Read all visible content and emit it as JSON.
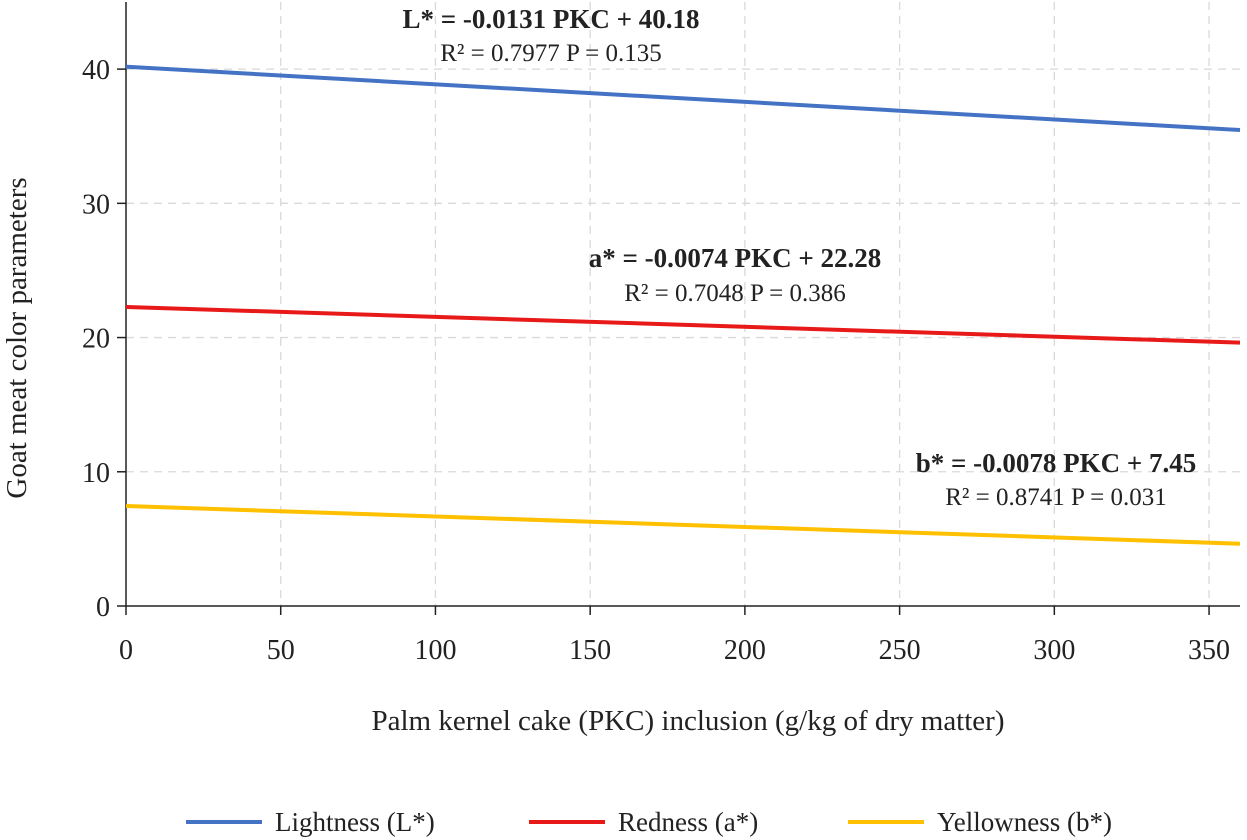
{
  "chart_data": {
    "type": "line",
    "title": "",
    "xlabel": "Palm kernel cake (PKC) inclusion (g/kg of dry matter)",
    "ylabel": "Goat meat color parameters",
    "xlim": [
      0,
      360
    ],
    "ylim": [
      0,
      45
    ],
    "xticks": [
      0,
      50,
      100,
      150,
      200,
      250,
      300,
      350
    ],
    "yticks": [
      0,
      10,
      20,
      30,
      40
    ],
    "grid": true,
    "legend_position": "bottom",
    "series": [
      {
        "name": "Lightness (L*)",
        "color": "#4472c4",
        "x": [
          0,
          360
        ],
        "y": [
          40.18,
          35.46
        ],
        "equation": "L* = -0.0131 PKC + 40.18",
        "stats": "R² = 0.7977 P = 0.135"
      },
      {
        "name": "Redness (a*)",
        "color": "#e81919",
        "x": [
          0,
          360
        ],
        "y": [
          22.28,
          19.62
        ],
        "equation": "a* = -0.0074 PKC + 22.28",
        "stats": "R² = 0.7048 P = 0.386"
      },
      {
        "name": "Yellowness (b*)",
        "color": "#ffc000",
        "x": [
          0,
          360
        ],
        "y": [
          7.45,
          4.64
        ],
        "equation": "b* = -0.0078 PKC + 7.45",
        "stats": "R² = 0.8741 P = 0.031"
      }
    ]
  }
}
